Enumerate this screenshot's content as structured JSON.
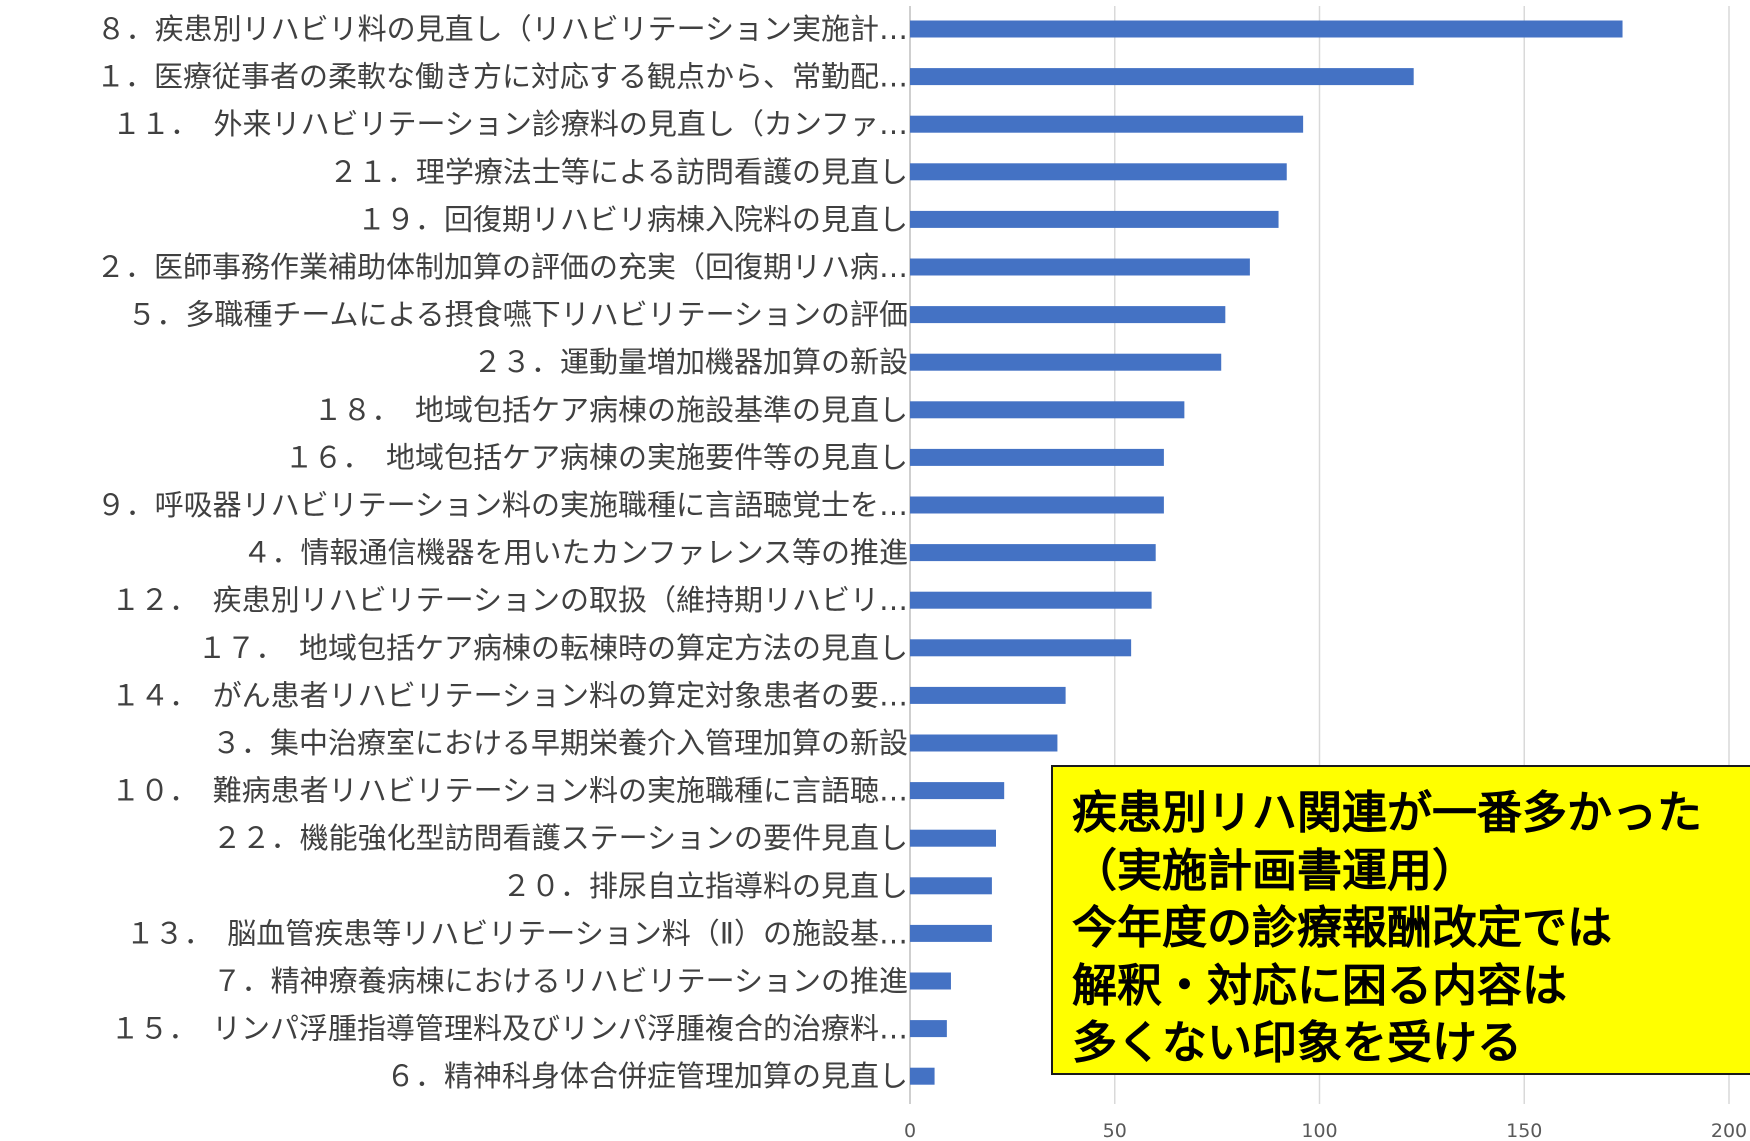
{
  "chart_data": {
    "type": "bar",
    "orientation": "horizontal",
    "categories": [
      "８．疾患別リハビリ料の見直し（リハビリテーション実施計…",
      "１．医療従事者の柔軟な働き方に対応する観点から、常勤配…",
      "１１．　外来リハビリテーション診療料の見直し（カンファ…",
      "２１．理学療法士等による訪問看護の見直し",
      "１９．回復期リハビリ病棟入院料の見直し",
      "２．医師事務作業補助体制加算の評価の充実（回復期リハ病…",
      "５．多職種チームによる摂食嚥下リハビリテーションの評価",
      "２３．運動量増加機器加算の新設",
      "１８．　地域包括ケア病棟の施設基準の見直し",
      "１６．　地域包括ケア病棟の実施要件等の見直し",
      "９．呼吸器リハビリテーション料の実施職種に言語聴覚士を…",
      "４．情報通信機器を用いたカンファレンス等の推進",
      "１２．　疾患別リハビリテーションの取扱（維持期リハビリ…",
      "１７．　地域包括ケア病棟の転棟時の算定方法の見直し",
      "１４．　がん患者リハビリテーション料の算定対象患者の要…",
      "３．集中治療室における早期栄養介入管理加算の新設",
      "１０．　難病患者リハビリテーション料の実施職種に言語聴…",
      "２２．機能強化型訪問看護ステーションの要件見直し",
      "２０．排尿自立指導料の見直し",
      "１３．　脳血管疾患等リハビリテーション料（Ⅱ）の施設基…",
      "７．精神療養病棟におけるリハビリテーションの推進",
      "１５．　リンパ浮腫指導管理料及びリンパ浮腫複合的治療料…",
      "６．精神科身体合併症管理加算の見直し"
    ],
    "values": [
      174,
      123,
      96,
      92,
      90,
      83,
      77,
      76,
      67,
      62,
      62,
      60,
      59,
      54,
      38,
      36,
      23,
      21,
      20,
      20,
      10,
      9,
      6
    ],
    "xlim": [
      0,
      200
    ],
    "xticks": [
      "0",
      "50",
      "100",
      "150",
      "200"
    ],
    "grid": "vertical",
    "bar_color": "#4472c4",
    "title": "",
    "xlabel": "",
    "ylabel": ""
  },
  "callout": {
    "lines": [
      "疾患別リハ関連が一番多かった",
      "（実施計画書運用）",
      "今年度の診療報酬改定では",
      "解釈・対応に困る内容は",
      "多くない印象を受ける"
    ],
    "background": "#ffff00"
  }
}
